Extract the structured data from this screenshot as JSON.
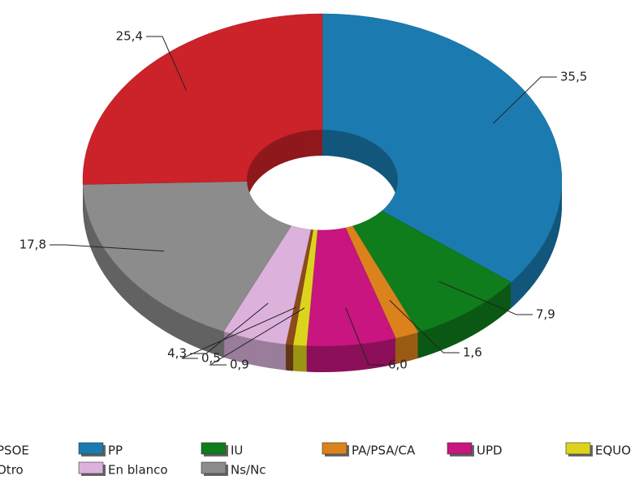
{
  "chart_data": {
    "type": "pie",
    "categories": [
      "PP",
      "IU",
      "PA/PSA/CA",
      "UPD",
      "EQUO",
      "Otro",
      "En blanco",
      "Ns/Nc",
      "PSOE"
    ],
    "values": [
      35.5,
      7.9,
      1.6,
      6.0,
      0.9,
      0.5,
      4.3,
      17.8,
      25.4
    ],
    "value_labels": [
      "35,5",
      "7,9",
      "1,6",
      "6,0",
      "0,9",
      "0,5",
      "4,3",
      "17,8",
      "25,4"
    ],
    "colors": [
      "#1b7bb0",
      "#0f7d1c",
      "#dc821c",
      "#c8157f",
      "#dcd41c",
      "#8c4b1c",
      "#dcb2dc",
      "#8c8c8c",
      "#cc2229"
    ],
    "legend_order": [
      8,
      0,
      1,
      2,
      3,
      4,
      5,
      6,
      7
    ]
  }
}
